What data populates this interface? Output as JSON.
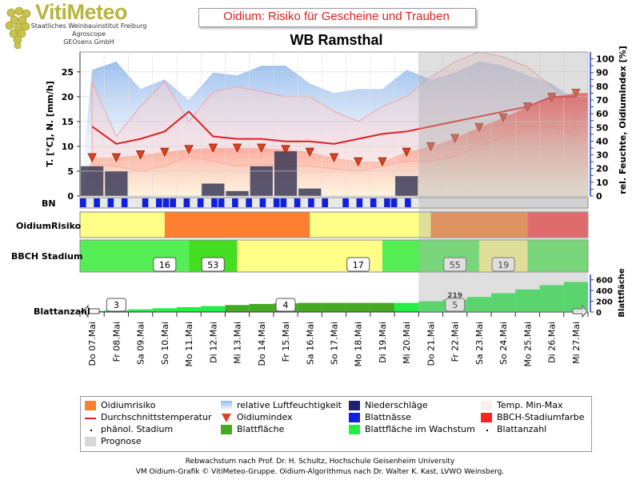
{
  "logo": {
    "brand": "VitiMeteo",
    "line1": "Staatliches Weinbauinstitut Freiburg",
    "line2": "Agroscope",
    "line3": "GEOsens GmbH"
  },
  "title": "Oidium: Risiko für Gescheine und Trauben",
  "subtitle": "WB Ramsthal",
  "panel_labels": {
    "bn": "BN",
    "risk": "OidiumRisiko",
    "bbch": "BBCH Stadium",
    "leaf": "Blattanzahl",
    "leaf_right": "Blattfläche"
  },
  "chart_data": {
    "type": "line",
    "x": [
      "Do 07.Mai",
      "Fr 08.Mai",
      "Sa 09.Mai",
      "So 10.Mai",
      "Mo 11.Mai",
      "Di 12.Mai",
      "Mi 13.Mai",
      "Do 14.Mai",
      "Fr 15.Mai",
      "Sa 16.Mai",
      "So 17.Mai",
      "Mo 18.Mai",
      "Di 19.Mai",
      "Mi 20.Mai",
      "Do 21.Mai",
      "Fr 22.Mai",
      "Sa 23.Mai",
      "So 24.Mai",
      "Mo 25.Mai",
      "Di 26.Mai",
      "Mi 27.Mai"
    ],
    "ylabel": "T. [°C], N. [mm/h]",
    "ylabel_right": "rel. Feuchte, OidiumIndex [%]",
    "ylim": [
      0,
      29
    ],
    "ylim_right": [
      0,
      105
    ],
    "yticks": [
      0,
      5,
      10,
      15,
      20,
      25
    ],
    "yticks_right": [
      0,
      5,
      10,
      15,
      20,
      25,
      30,
      35,
      40,
      45,
      50,
      55,
      60,
      65,
      70,
      75,
      80,
      85,
      90,
      95,
      100
    ],
    "forecast_from": "Do 21.Mai",
    "series": [
      {
        "name": "Durchschnittstemperatur",
        "color": "#e02020",
        "values": [
          14,
          10.5,
          11.5,
          13,
          17,
          12,
          11.5,
          11.5,
          11,
          11,
          10.5,
          11.5,
          12.5,
          13,
          14,
          15,
          16,
          17,
          18,
          20,
          20
        ]
      },
      {
        "name": "Oidiumindex",
        "color": "#e04020",
        "values": [
          28,
          28,
          30,
          32,
          34,
          35,
          35,
          35,
          34,
          32,
          28,
          25,
          25,
          32,
          36,
          42,
          50,
          57,
          65,
          72,
          75
        ]
      },
      {
        "name": "relative Luftfeuchtigkeit",
        "color": "#a8c8f0",
        "values": [
          92,
          98,
          78,
          85,
          70,
          90,
          88,
          95,
          95,
          82,
          75,
          78,
          78,
          92,
          85,
          90,
          98,
          95,
          88,
          82,
          70
        ]
      },
      {
        "name": "Niederschläge",
        "color": "#303060",
        "values": [
          6,
          5,
          0,
          0,
          0,
          2.5,
          1,
          6,
          9,
          1.5,
          0,
          0,
          0,
          4,
          0,
          0,
          0,
          0,
          0,
          0,
          0
        ]
      }
    ],
    "temp_min": [
      6.5,
      6,
      5,
      6,
      8,
      7,
      6,
      6.5,
      6,
      6,
      5.5,
      5,
      6,
      7,
      7,
      8,
      10,
      12,
      13,
      14,
      12
    ],
    "temp_max": [
      23,
      12,
      18,
      23,
      15,
      21,
      22,
      21,
      20,
      20,
      17,
      15,
      18,
      20,
      24,
      27,
      29,
      28,
      26,
      22,
      18
    ],
    "leaf_area": [
      20,
      30,
      50,
      70,
      90,
      110,
      130,
      150,
      160,
      170,
      170,
      170,
      170,
      170,
      200,
      230,
      280,
      350,
      420,
      500,
      560
    ],
    "leaf_area_ylim": [
      0,
      700
    ],
    "leaf_area_yticks": [
      0,
      200,
      400,
      600
    ],
    "risk_segments": [
      {
        "from": 0,
        "to": 3.5,
        "color": "#ffff88"
      },
      {
        "from": 3.5,
        "to": 9.5,
        "color": "#ff7f30"
      },
      {
        "from": 9.5,
        "to": 14.5,
        "color": "#ffff88"
      },
      {
        "from": 14.5,
        "to": 18.5,
        "color": "#ff7f30"
      },
      {
        "from": 18.5,
        "to": 21,
        "color": "#ff4040"
      }
    ],
    "bbch_segments": [
      {
        "from": 0,
        "to": 4.5,
        "color": "#55ee55"
      },
      {
        "from": 4.5,
        "to": 6.5,
        "color": "#44dd22"
      },
      {
        "from": 6.5,
        "to": 12.5,
        "color": "#ffff88"
      },
      {
        "from": 12.5,
        "to": 16.5,
        "color": "#55ee55"
      },
      {
        "from": 16.5,
        "to": 18.5,
        "color": "#ffff88"
      },
      {
        "from": 18.5,
        "to": 21,
        "color": "#55ee55"
      }
    ],
    "bbch_labels": [
      {
        "x": 3.5,
        "text": "16"
      },
      {
        "x": 5.5,
        "text": "53"
      },
      {
        "x": 11.5,
        "text": "17"
      },
      {
        "x": 15.5,
        "text": "55"
      },
      {
        "x": 17.5,
        "text": "19"
      }
    ],
    "leaf_labels": [
      {
        "x": 1.5,
        "text": "3"
      },
      {
        "x": 8.5,
        "text": "4"
      },
      {
        "x": 15.5,
        "text": "5"
      }
    ],
    "leaf_value_label": {
      "x": 15.5,
      "text": "219"
    }
  },
  "legend": [
    {
      "label": "Oidiumrisiko",
      "sym": "square",
      "color": "#ff7f30"
    },
    {
      "label": "relative Luftfeuchtigkeit",
      "sym": "gradient",
      "color": "#a8c8f0"
    },
    {
      "label": "Niederschläge",
      "sym": "square",
      "color": "#202070"
    },
    {
      "label": "Temp. Min-Max",
      "sym": "square",
      "color": "#f4f0f0"
    },
    {
      "label": "Durchschnittstemperatur",
      "sym": "line",
      "color": "#e02020"
    },
    {
      "label": "Oidiumindex",
      "sym": "triangle",
      "color": "#e04020"
    },
    {
      "label": "Blattnässe",
      "sym": "square",
      "color": "#1020e0"
    },
    {
      "label": "BBCH-Stadiumfarbe",
      "sym": "square",
      "color": "#ff2020"
    },
    {
      "label": "phänol. Stadium",
      "sym": "dot",
      "color": "#000000"
    },
    {
      "label": "Blattfläche",
      "sym": "square",
      "color": "#44aa22"
    },
    {
      "label": "Blattfläche im Wachstum",
      "sym": "square",
      "color": "#22ee44"
    },
    {
      "label": "Blattanzahl",
      "sym": "dot",
      "color": "#000000"
    },
    {
      "label": "Prognose",
      "sym": "square",
      "color": "#d8d8d8"
    }
  ],
  "footer": {
    "line1": "Rebwachstum nach Prof. Dr. H. Schultz, Hochschule Geisenheim University",
    "line2": "VM Oidium-Grafik © VitiMeteo-Gruppe. Oidium-Algorithmus nach Dr. Walter K. Kast, LVWO Weinsberg."
  }
}
